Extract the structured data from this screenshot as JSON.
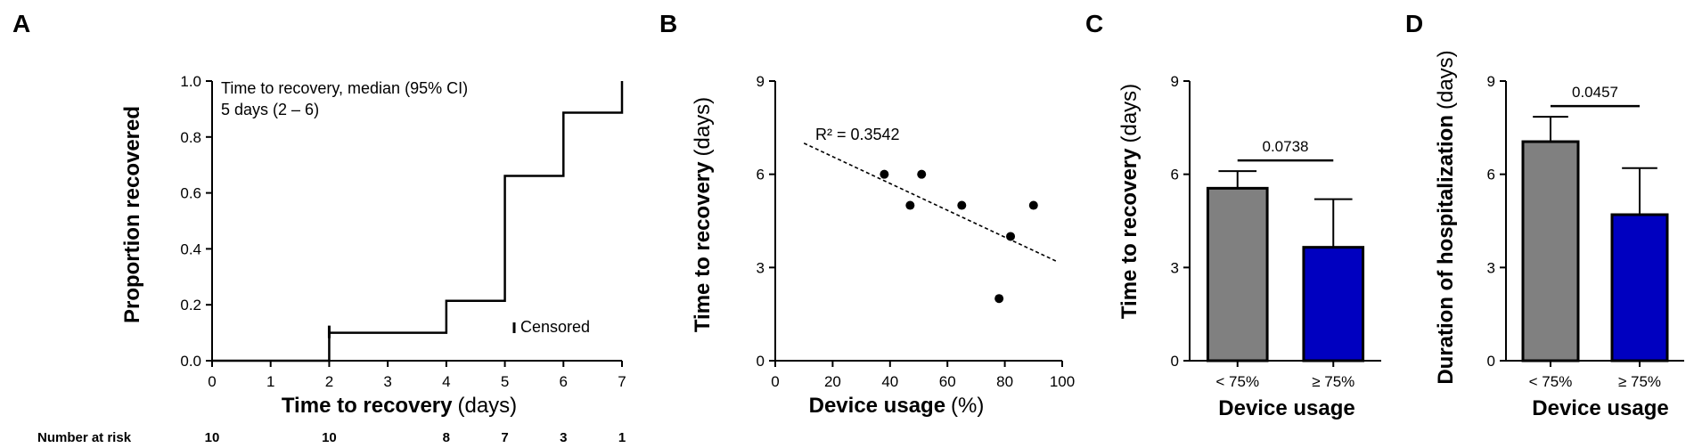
{
  "panels": {
    "A": "A",
    "B": "B",
    "C": "C",
    "D": "D"
  },
  "chart_data": [
    {
      "panel": "A",
      "type": "line",
      "ylabel": "Proportion recovered",
      "xlabel": "Time to recovery",
      "xlabel_unit": "(days)",
      "xlim": [
        0,
        7
      ],
      "ylim": [
        0,
        1
      ],
      "x_ticks": [
        "0",
        "1",
        "2",
        "3",
        "4",
        "5",
        "6",
        "7"
      ],
      "y_ticks": [
        "0.0",
        "0.2",
        "0.4",
        "0.6",
        "0.8",
        "1.0"
      ],
      "step_points": [
        [
          0,
          0
        ],
        [
          2,
          0
        ],
        [
          2,
          0.1
        ],
        [
          4,
          0.1
        ],
        [
          4,
          0.214
        ],
        [
          5,
          0.214
        ],
        [
          5,
          0.661
        ],
        [
          6,
          0.661
        ],
        [
          6,
          0.887
        ],
        [
          7,
          0.887
        ],
        [
          7,
          1.0
        ]
      ],
      "censored_marks": [
        [
          2,
          0.1
        ]
      ],
      "annotation_line1": "Time to recovery, median (95% CI)",
      "annotation_line2": "5 days (2 – 6)",
      "legend_censored": "Censored",
      "number_at_risk_label": "Number at risk",
      "number_at_risk": [
        {
          "x": 0,
          "n": "10"
        },
        {
          "x": 2,
          "n": "10"
        },
        {
          "x": 4,
          "n": "8"
        },
        {
          "x": 5,
          "n": "7"
        },
        {
          "x": 6,
          "n": "3"
        },
        {
          "x": 7,
          "n": "1"
        }
      ]
    },
    {
      "panel": "B",
      "type": "scatter",
      "ylabel": "Time to recovery",
      "ylabel_unit": "(days)",
      "xlabel": "Device usage",
      "xlabel_unit": "(%)",
      "xlim": [
        0,
        100
      ],
      "ylim": [
        0,
        9
      ],
      "x_ticks": [
        "0",
        "20",
        "40",
        "60",
        "80",
        "100"
      ],
      "y_ticks": [
        "0",
        "3",
        "6",
        "9"
      ],
      "points": [
        [
          38,
          6
        ],
        [
          47,
          5
        ],
        [
          51,
          6
        ],
        [
          65,
          5
        ],
        [
          78,
          2
        ],
        [
          82,
          4
        ],
        [
          90,
          5
        ]
      ],
      "fit_line": [
        [
          10,
          7.0
        ],
        [
          98,
          3.2
        ]
      ],
      "r2_label": "R² = 0.3542"
    },
    {
      "panel": "C",
      "type": "bar",
      "ylabel": "Time to recovery",
      "ylabel_unit": "(days)",
      "xlabel": "Device usage",
      "ylim": [
        0,
        9
      ],
      "y_ticks": [
        "0",
        "3",
        "6",
        "9"
      ],
      "categories": [
        "< 75%",
        "≥ 75%"
      ],
      "values": [
        5.55,
        3.65
      ],
      "error_upper": [
        6.1,
        5.2
      ],
      "colors": [
        "#808080",
        "#0000c0"
      ],
      "p_value": "0.0738"
    },
    {
      "panel": "D",
      "type": "bar",
      "ylabel": "Duration of hospitalization",
      "ylabel_unit": "(days)",
      "xlabel": "Device usage",
      "ylim": [
        0,
        9
      ],
      "y_ticks": [
        "0",
        "3",
        "6",
        "9"
      ],
      "categories": [
        "< 75%",
        "≥ 75%"
      ],
      "values": [
        7.05,
        4.7
      ],
      "error_upper": [
        7.85,
        6.2
      ],
      "colors": [
        "#808080",
        "#0000c0"
      ],
      "p_value": "0.0457"
    }
  ]
}
